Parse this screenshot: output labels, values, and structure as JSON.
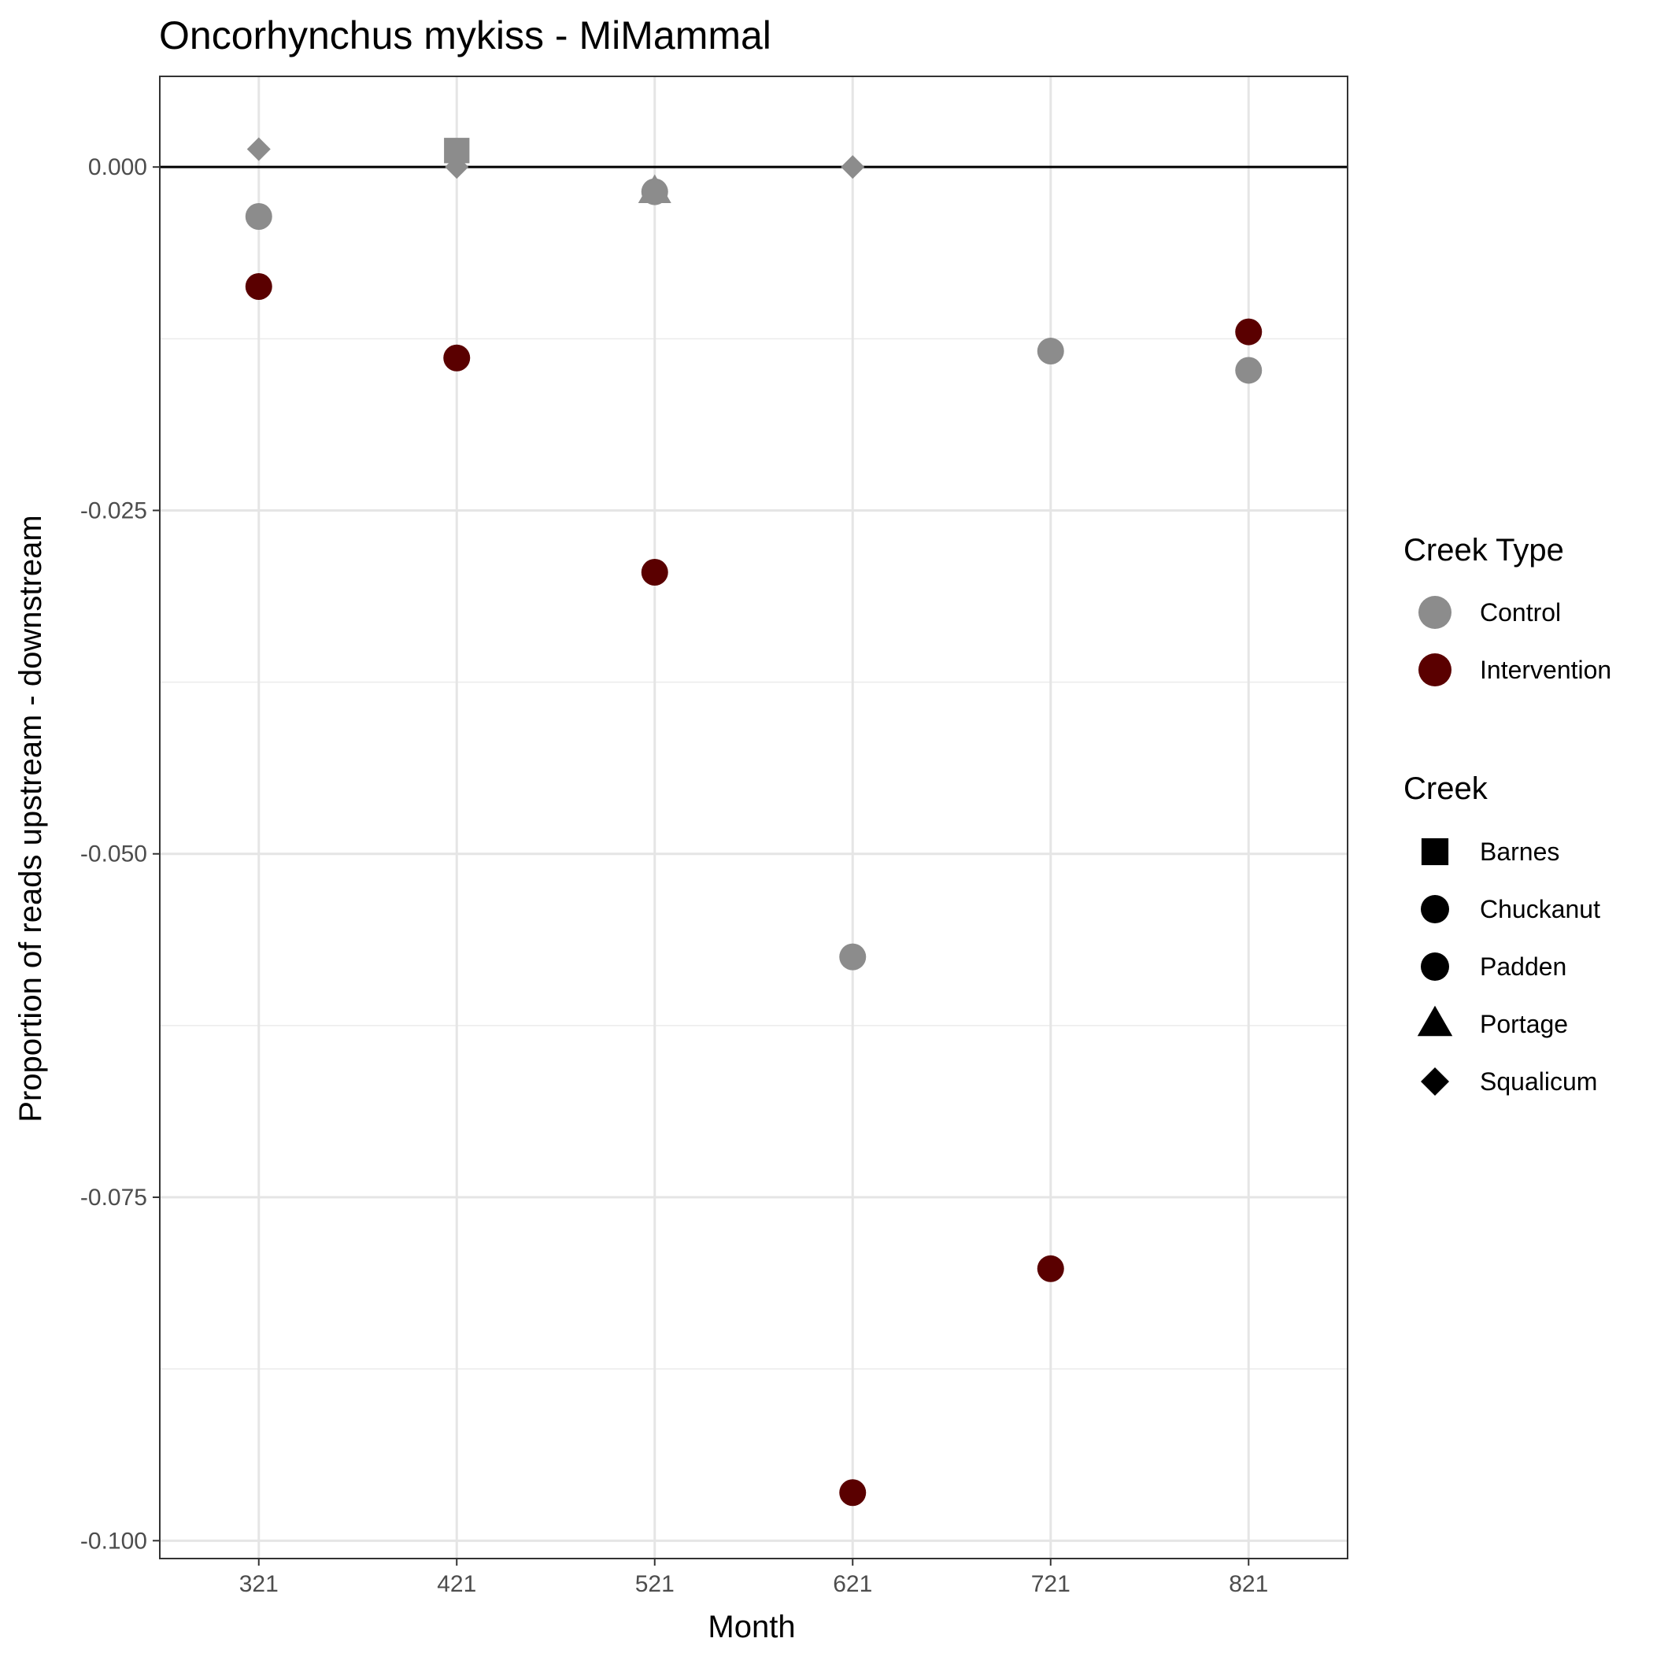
{
  "chart_data": {
    "type": "scatter",
    "title": "Oncorhynchus mykiss - MiMammal",
    "xlabel": "Month",
    "ylabel": "Proportion of reads upstream - downstream",
    "x_categories": [
      "321",
      "421",
      "521",
      "621",
      "721",
      "821"
    ],
    "y_ticks": [
      0.0,
      -0.025,
      -0.05,
      -0.075,
      -0.1
    ],
    "y_tick_labels": [
      "0.000",
      "-0.025",
      "-0.050",
      "-0.075",
      "-0.100"
    ],
    "ylim": [
      -0.1013,
      0.0066
    ],
    "grid": true,
    "reference_line_y": 0,
    "colors": {
      "Control": "#8c8c8c",
      "Intervention": "#5a0000"
    },
    "legend": {
      "position": "right",
      "color_title": "Creek Type",
      "color_entries": [
        "Control",
        "Intervention"
      ],
      "shape_title": "Creek",
      "shape_entries": [
        {
          "label": "Barnes",
          "shape": "square"
        },
        {
          "label": "Chuckanut",
          "shape": "circle"
        },
        {
          "label": "Padden",
          "shape": "circle"
        },
        {
          "label": "Portage",
          "shape": "triangle"
        },
        {
          "label": "Squalicum",
          "shape": "diamond"
        }
      ]
    },
    "points": [
      {
        "x": "321",
        "y": 0.0013,
        "creek_type": "Control",
        "shape": "diamond"
      },
      {
        "x": "321",
        "y": -0.0036,
        "creek_type": "Control",
        "shape": "circle"
      },
      {
        "x": "321",
        "y": -0.0087,
        "creek_type": "Intervention",
        "shape": "circle"
      },
      {
        "x": "421",
        "y": 0.0,
        "creek_type": "Control",
        "shape": "diamond"
      },
      {
        "x": "421",
        "y": 0.0012,
        "creek_type": "Control",
        "shape": "square"
      },
      {
        "x": "421",
        "y": -0.0139,
        "creek_type": "Intervention",
        "shape": "circle"
      },
      {
        "x": "521",
        "y": -0.0018,
        "creek_type": "Control",
        "shape": "triangle"
      },
      {
        "x": "521",
        "y": -0.0018,
        "creek_type": "Control",
        "shape": "circle"
      },
      {
        "x": "521",
        "y": -0.0295,
        "creek_type": "Intervention",
        "shape": "circle"
      },
      {
        "x": "621",
        "y": 0.0,
        "creek_type": "Control",
        "shape": "diamond"
      },
      {
        "x": "621",
        "y": -0.0575,
        "creek_type": "Control",
        "shape": "circle"
      },
      {
        "x": "621",
        "y": -0.0965,
        "creek_type": "Intervention",
        "shape": "circle"
      },
      {
        "x": "721",
        "y": -0.0134,
        "creek_type": "Control",
        "shape": "circle"
      },
      {
        "x": "721",
        "y": -0.0802,
        "creek_type": "Intervention",
        "shape": "circle"
      },
      {
        "x": "821",
        "y": -0.012,
        "creek_type": "Intervention",
        "shape": "circle"
      },
      {
        "x": "821",
        "y": -0.0148,
        "creek_type": "Control",
        "shape": "circle"
      }
    ]
  }
}
